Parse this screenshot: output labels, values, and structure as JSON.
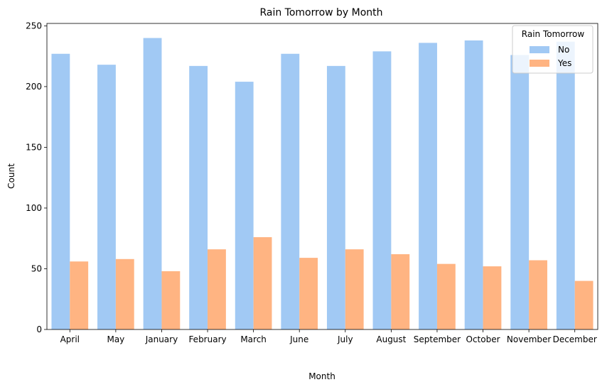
{
  "chart_data": {
    "type": "bar",
    "title": "Rain Tomorrow by Month",
    "xlabel": "Month",
    "ylabel": "Count",
    "categories": [
      "April",
      "May",
      "January",
      "February",
      "March",
      "June",
      "July",
      "August",
      "September",
      "October",
      "November",
      "December"
    ],
    "series": [
      {
        "name": "No",
        "color": "#a1c9f4",
        "values": [
          227,
          218,
          240,
          217,
          204,
          227,
          217,
          229,
          236,
          238,
          226,
          237
        ]
      },
      {
        "name": "Yes",
        "color": "#ffb482",
        "values": [
          56,
          58,
          48,
          66,
          76,
          59,
          66,
          62,
          54,
          52,
          57,
          40
        ]
      }
    ],
    "yticks": [
      0,
      50,
      100,
      150,
      200,
      250
    ],
    "ylim": [
      0,
      252
    ],
    "legend": {
      "title": "Rain Tomorrow",
      "placement": "top-right"
    },
    "grid": false
  }
}
